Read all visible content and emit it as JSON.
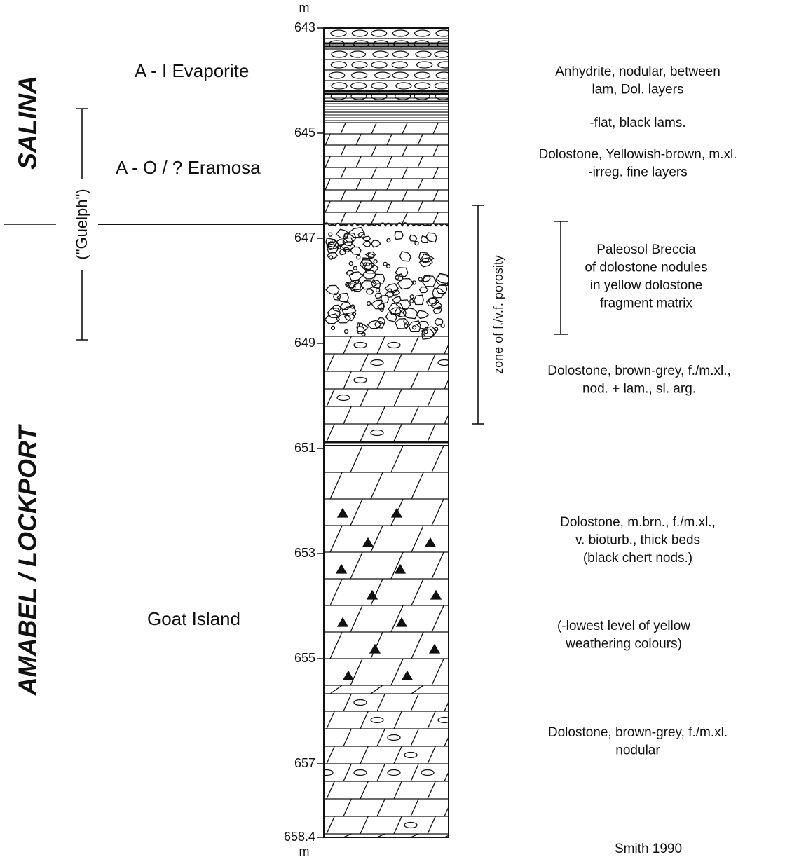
{
  "depth_axis": {
    "unit_top": "m",
    "unit_bottom": "m",
    "range": [
      643,
      658.4
    ],
    "ticks": [
      643,
      645,
      647,
      649,
      651,
      653,
      655,
      657,
      658.4
    ]
  },
  "groups": [
    "SALINA",
    "AMABEL / LOCKPORT"
  ],
  "guelph_label": "(\"Guelph\")",
  "formations": [
    "A - I Evaporite",
    "A - O / ? Eramosa",
    "Goat Island"
  ],
  "porosity_label": "zone of f./v.f. porosity",
  "descriptions": [
    [
      "Anhydrite, nodular, between",
      "lam, Dol. layers"
    ],
    [
      "-flat, black lams."
    ],
    [
      "Dolostone, Yellowish-brown, m.xl.",
      "-irreg. fine layers"
    ],
    [
      "Paleosol Breccia",
      "of dolostone nodules",
      "in yellow dolostone",
      "fragment matrix"
    ],
    [
      "Dolostone, brown-grey, f./m.xl.,",
      "nod. + lam., sl. arg."
    ],
    [
      "Dolostone, m.brn., f./m.xl.,",
      "v. bioturb., thick beds",
      "(black chert nods.)"
    ],
    [
      "(-lowest level of yellow",
      "weathering colours)"
    ],
    [
      "Dolostone, brown-grey, f./m.xl.",
      "nodular"
    ]
  ],
  "credit": "Smith 1990"
}
